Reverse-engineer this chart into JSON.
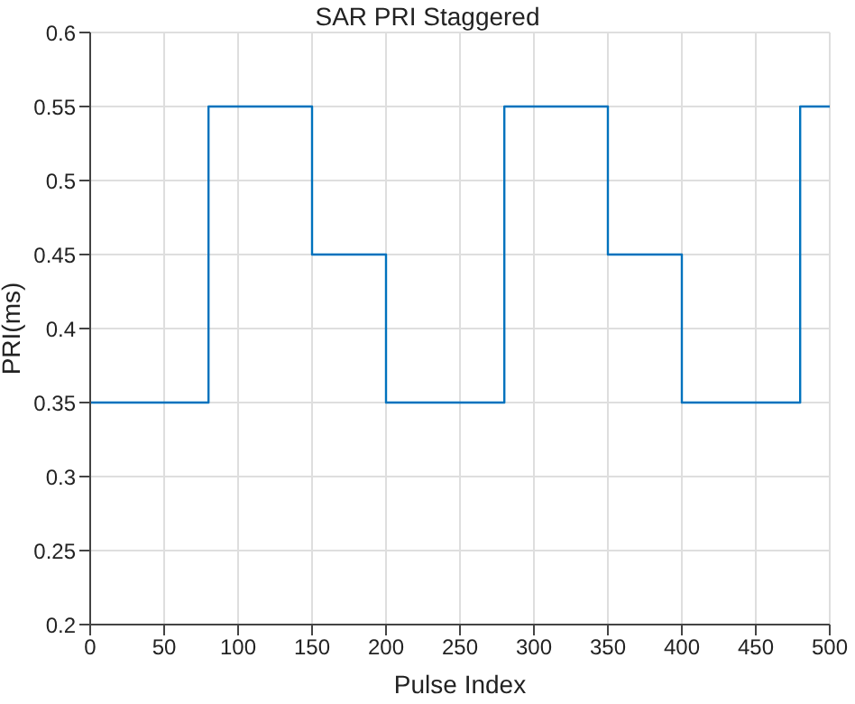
{
  "chart_data": {
    "type": "step",
    "title": "SAR PRI Staggered",
    "xlabel": "Pulse Index",
    "ylabel": "PRI(ms)",
    "x": [
      0,
      80,
      150,
      200,
      280,
      350,
      400,
      480,
      500
    ],
    "series": [
      {
        "color": "#0072bd",
        "values": [
          0.35,
          0.55,
          0.45,
          0.35,
          0.55,
          0.45,
          0.35,
          0.55,
          0.55
        ]
      }
    ],
    "xlim": [
      0,
      500
    ],
    "xticks": [
      0,
      50,
      100,
      150,
      200,
      250,
      300,
      350,
      400,
      450,
      500
    ],
    "ylim": [
      0.2,
      0.6
    ],
    "yticks": [
      0.2,
      0.25,
      0.3,
      0.35,
      0.4,
      0.45,
      0.5,
      0.55,
      0.6
    ],
    "grid": true,
    "marker": "none",
    "line_style": "solid"
  }
}
